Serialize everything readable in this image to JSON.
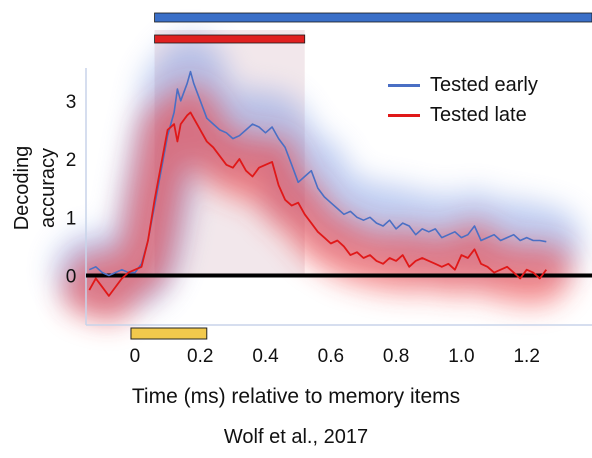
{
  "chart_data": {
    "type": "line",
    "xlabel": "Time (ms) relative to memory items",
    "ylabel": "Decoding accuracy",
    "caption": "Wolf et al., 2017",
    "xlim": [
      -0.15,
      1.4
    ],
    "ylim": [
      -0.85,
      3.7
    ],
    "x_ticks": [
      0,
      0.2,
      0.4,
      0.6,
      0.8,
      1.0,
      1.2
    ],
    "x_tick_labels": [
      "0",
      "0.2",
      "0.4",
      "0.6",
      "0.8",
      "1.0",
      "1.2"
    ],
    "y_ticks": [
      0,
      1,
      2,
      3
    ],
    "y_tick_labels": [
      "0",
      "1",
      "2",
      "3"
    ],
    "grid": false,
    "legend_position": "top-right",
    "series": [
      {
        "name": "Tested early",
        "color": "#4a6fc4",
        "points": [
          [
            -0.14,
            0.1
          ],
          [
            -0.12,
            0.15
          ],
          [
            -0.1,
            0.05
          ],
          [
            -0.08,
            0.0
          ],
          [
            -0.06,
            0.05
          ],
          [
            -0.04,
            0.1
          ],
          [
            -0.02,
            0.05
          ],
          [
            0.0,
            0.05
          ],
          [
            0.02,
            0.2
          ],
          [
            0.04,
            0.6
          ],
          [
            0.06,
            1.2
          ],
          [
            0.08,
            1.8
          ],
          [
            0.1,
            2.4
          ],
          [
            0.12,
            2.8
          ],
          [
            0.13,
            3.2
          ],
          [
            0.14,
            3.0
          ],
          [
            0.16,
            3.3
          ],
          [
            0.17,
            3.5
          ],
          [
            0.18,
            3.3
          ],
          [
            0.2,
            3.0
          ],
          [
            0.22,
            2.7
          ],
          [
            0.24,
            2.6
          ],
          [
            0.26,
            2.5
          ],
          [
            0.28,
            2.45
          ],
          [
            0.3,
            2.35
          ],
          [
            0.32,
            2.4
          ],
          [
            0.34,
            2.5
          ],
          [
            0.36,
            2.6
          ],
          [
            0.38,
            2.55
          ],
          [
            0.4,
            2.45
          ],
          [
            0.42,
            2.55
          ],
          [
            0.44,
            2.35
          ],
          [
            0.46,
            2.2
          ],
          [
            0.48,
            1.9
          ],
          [
            0.5,
            1.6
          ],
          [
            0.52,
            1.7
          ],
          [
            0.54,
            1.8
          ],
          [
            0.56,
            1.5
          ],
          [
            0.58,
            1.35
          ],
          [
            0.6,
            1.25
          ],
          [
            0.62,
            1.15
          ],
          [
            0.64,
            1.05
          ],
          [
            0.66,
            1.1
          ],
          [
            0.68,
            1.0
          ],
          [
            0.7,
            0.95
          ],
          [
            0.72,
            1.0
          ],
          [
            0.74,
            0.9
          ],
          [
            0.76,
            0.85
          ],
          [
            0.78,
            0.95
          ],
          [
            0.8,
            0.8
          ],
          [
            0.82,
            0.9
          ],
          [
            0.84,
            0.85
          ],
          [
            0.86,
            0.7
          ],
          [
            0.88,
            0.8
          ],
          [
            0.9,
            0.75
          ],
          [
            0.92,
            0.8
          ],
          [
            0.94,
            0.65
          ],
          [
            0.96,
            0.7
          ],
          [
            0.98,
            0.75
          ],
          [
            1.0,
            0.65
          ],
          [
            1.02,
            0.7
          ],
          [
            1.04,
            0.85
          ],
          [
            1.06,
            0.6
          ],
          [
            1.08,
            0.65
          ],
          [
            1.1,
            0.7
          ],
          [
            1.12,
            0.6
          ],
          [
            1.14,
            0.65
          ],
          [
            1.16,
            0.7
          ],
          [
            1.18,
            0.6
          ],
          [
            1.2,
            0.65
          ],
          [
            1.22,
            0.6
          ],
          [
            1.24,
            0.6
          ],
          [
            1.26,
            0.58
          ]
        ]
      },
      {
        "name": "Tested late",
        "color": "#e01818",
        "points": [
          [
            -0.14,
            -0.25
          ],
          [
            -0.12,
            -0.05
          ],
          [
            -0.1,
            -0.2
          ],
          [
            -0.08,
            -0.35
          ],
          [
            -0.06,
            -0.2
          ],
          [
            -0.04,
            -0.05
          ],
          [
            -0.02,
            0.05
          ],
          [
            0.0,
            0.1
          ],
          [
            0.02,
            0.15
          ],
          [
            0.04,
            0.6
          ],
          [
            0.06,
            1.3
          ],
          [
            0.08,
            1.9
          ],
          [
            0.1,
            2.5
          ],
          [
            0.12,
            2.6
          ],
          [
            0.13,
            2.3
          ],
          [
            0.14,
            2.6
          ],
          [
            0.16,
            2.75
          ],
          [
            0.17,
            2.8
          ],
          [
            0.18,
            2.7
          ],
          [
            0.2,
            2.5
          ],
          [
            0.22,
            2.3
          ],
          [
            0.24,
            2.2
          ],
          [
            0.26,
            2.05
          ],
          [
            0.28,
            1.9
          ],
          [
            0.3,
            1.85
          ],
          [
            0.32,
            2.0
          ],
          [
            0.34,
            1.8
          ],
          [
            0.36,
            1.7
          ],
          [
            0.38,
            1.85
          ],
          [
            0.4,
            1.9
          ],
          [
            0.42,
            1.95
          ],
          [
            0.44,
            1.55
          ],
          [
            0.46,
            1.3
          ],
          [
            0.48,
            1.2
          ],
          [
            0.5,
            1.25
          ],
          [
            0.52,
            1.05
          ],
          [
            0.54,
            0.9
          ],
          [
            0.56,
            0.75
          ],
          [
            0.58,
            0.65
          ],
          [
            0.6,
            0.55
          ],
          [
            0.62,
            0.6
          ],
          [
            0.64,
            0.5
          ],
          [
            0.66,
            0.35
          ],
          [
            0.68,
            0.4
          ],
          [
            0.7,
            0.3
          ],
          [
            0.72,
            0.35
          ],
          [
            0.74,
            0.25
          ],
          [
            0.76,
            0.2
          ],
          [
            0.78,
            0.3
          ],
          [
            0.8,
            0.25
          ],
          [
            0.82,
            0.35
          ],
          [
            0.84,
            0.15
          ],
          [
            0.86,
            0.25
          ],
          [
            0.88,
            0.3
          ],
          [
            0.9,
            0.25
          ],
          [
            0.92,
            0.2
          ],
          [
            0.94,
            0.15
          ],
          [
            0.96,
            0.2
          ],
          [
            0.98,
            0.1
          ],
          [
            1.0,
            0.35
          ],
          [
            1.02,
            0.3
          ],
          [
            1.04,
            0.45
          ],
          [
            1.06,
            0.2
          ],
          [
            1.08,
            0.15
          ],
          [
            1.1,
            0.05
          ],
          [
            1.12,
            0.1
          ],
          [
            1.14,
            0.15
          ],
          [
            1.16,
            0.05
          ],
          [
            1.18,
            -0.05
          ],
          [
            1.2,
            0.1
          ],
          [
            1.22,
            0.05
          ],
          [
            1.24,
            -0.05
          ],
          [
            1.26,
            0.1
          ]
        ]
      }
    ],
    "significance_bars": [
      {
        "series": "Tested early",
        "color": "#3a6fc8",
        "x_start": 0.06,
        "x_end": 1.4
      },
      {
        "series": "Tested late",
        "color": "#e02020",
        "x_start": 0.06,
        "x_end": 0.52
      }
    ],
    "shaded_window": {
      "x_start": 0.06,
      "x_end": 0.52
    },
    "stimulus_bar": {
      "color": "#f2c94c",
      "x_start": 0.0,
      "x_end": 0.22
    }
  }
}
